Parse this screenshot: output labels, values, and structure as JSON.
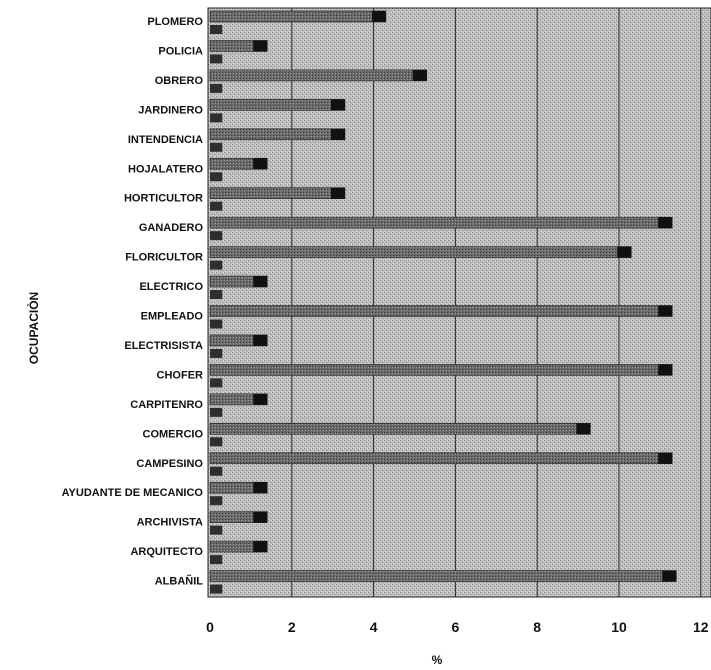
{
  "chart_data": {
    "type": "bar",
    "orientation": "horizontal",
    "xlabel": "%",
    "ylabel": "OCUPACIÒN",
    "xlim": [
      0,
      12
    ],
    "x_ticks": [
      "0",
      "2",
      "4",
      "6",
      "8",
      "10",
      "12"
    ],
    "grid": "vertical",
    "categories": [
      "PLOMERO",
      "POLICIA",
      "OBRERO",
      "JARDINERO",
      "INTENDENCIA",
      "HOJALATERO",
      "HORTICULTOR",
      "GANADERO",
      "FLORICULTOR",
      "ELECTRICO",
      "EMPLEADO",
      "ELECTRISISTA",
      "CHOFER",
      "CARPITENRO",
      "COMERCIO",
      "CAMPESINO",
      "AYUDANTE DE MECANICO",
      "ARCHIVISTA",
      "ARQUITECTO",
      "ALBAÑIL"
    ],
    "series": [
      {
        "values": [
          4.3,
          1.4,
          5.3,
          3.3,
          3.3,
          1.4,
          3.3,
          11.3,
          10.3,
          1.4,
          11.3,
          1.4,
          11.3,
          1.4,
          9.3,
          11.3,
          1.4,
          1.4,
          1.4,
          11.4
        ]
      },
      {
        "values": [
          0.3,
          0.3,
          0.3,
          0.3,
          0.3,
          0.3,
          0.3,
          0.3,
          0.3,
          0.3,
          0.3,
          0.3,
          0.3,
          0.3,
          0.3,
          0.3,
          0.3,
          0.3,
          0.3,
          0.3
        ]
      }
    ],
    "colors": {
      "plot_background": "#b4b4b4",
      "bar_fill": "#6a6a6a",
      "bar_cap": "#111111",
      "grid": "#2a2a2a"
    }
  }
}
